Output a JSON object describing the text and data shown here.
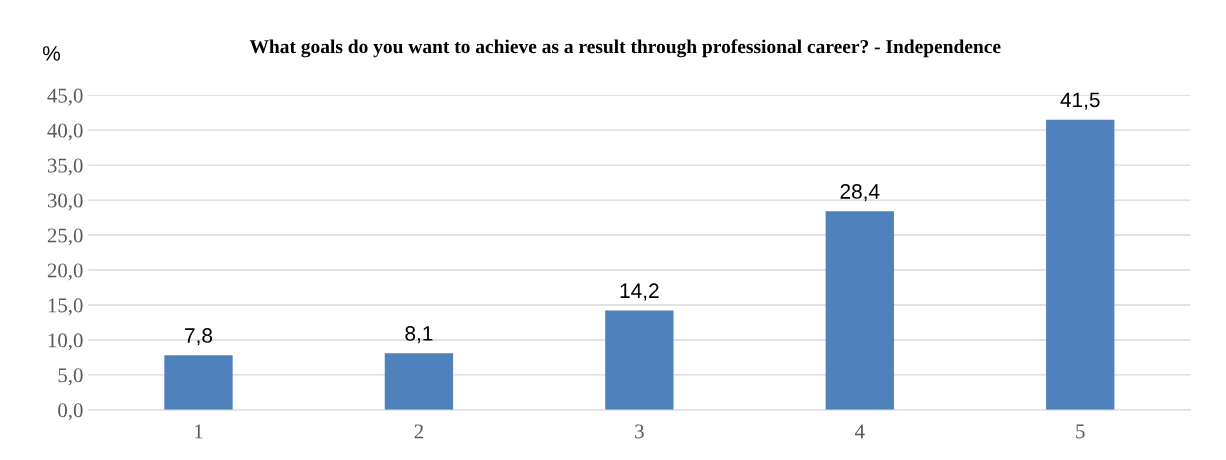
{
  "chart_data": {
    "type": "bar",
    "title": "What goals do you want to achieve as a result through professional career? - Independence",
    "ylabel": "%",
    "categories": [
      "1",
      "2",
      "3",
      "4",
      "5"
    ],
    "values": [
      7.8,
      8.1,
      14.2,
      28.4,
      41.5
    ],
    "value_labels": [
      "7,8",
      "8,1",
      "14,2",
      "28,4",
      "41,5"
    ],
    "color": "#4f81bd",
    "ylim": [
      0,
      45
    ],
    "yticks": [
      {
        "value": 0,
        "label": "0,0"
      },
      {
        "value": 5,
        "label": "5,0"
      },
      {
        "value": 10,
        "label": "10,0"
      },
      {
        "value": 15,
        "label": "15,0"
      },
      {
        "value": 20,
        "label": "20,0"
      },
      {
        "value": 25,
        "label": "25,0"
      },
      {
        "value": 30,
        "label": "30,0"
      },
      {
        "value": 35,
        "label": "35,0"
      },
      {
        "value": 40,
        "label": "40,0"
      },
      {
        "value": 45,
        "label": "45,0"
      }
    ],
    "grid": "y",
    "legend": false
  }
}
